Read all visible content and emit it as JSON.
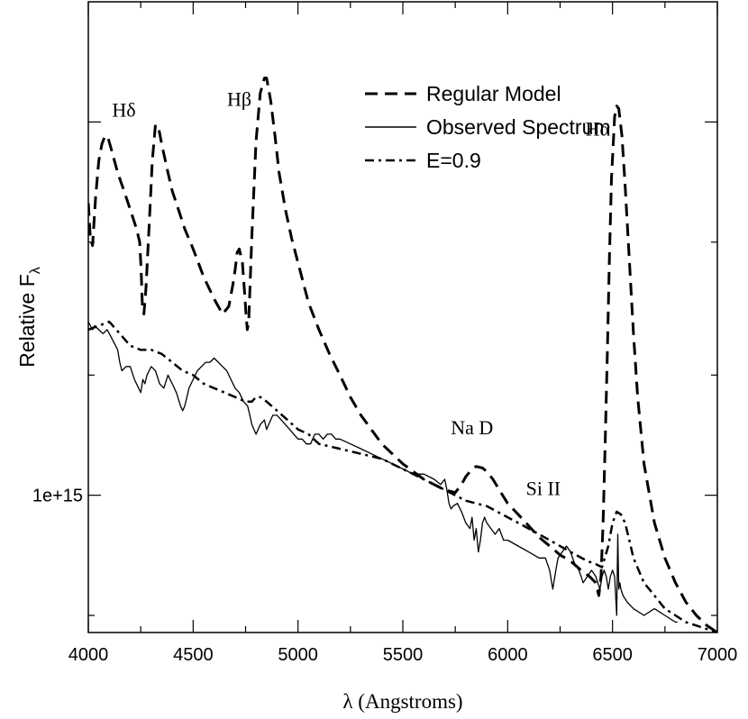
{
  "chart_data": {
    "type": "line",
    "title": "",
    "xlabel": "λ (Angstroms)",
    "ylabel": "Relative F",
    "ylabel_subscript": "λ",
    "xlim": [
      4000,
      7000
    ],
    "ylim": [
      0.775,
      2.5
    ],
    "yscale": "log",
    "x_ticks": [
      4000,
      4500,
      5000,
      5500,
      6000,
      6500,
      7000
    ],
    "x_tick_labels": [
      "4000",
      "4500",
      "5000",
      "5500",
      "6000",
      "6500",
      "7000"
    ],
    "y_tick_labels": [
      {
        "value": 1.0,
        "label": "1e+15"
      }
    ],
    "y_tick_unit_note": "y values are in units of 1e15",
    "legend": [
      "Regular Model",
      "Observed Spectrum",
      "E=0.9"
    ],
    "annotations": [
      {
        "text": "Hδ",
        "x": 4170,
        "y": 2.02
      },
      {
        "text": "Hβ",
        "x": 4720,
        "y": 2.06
      },
      {
        "text": "Hα",
        "x": 6430,
        "y": 1.95
      },
      {
        "text": "Na D",
        "x": 5830,
        "y": 1.12
      },
      {
        "text": "Si II",
        "x": 6170,
        "y": 1.0
      }
    ],
    "series": [
      {
        "name": "Regular Model",
        "style": "dashed",
        "x": [
          4000,
          4010,
          4020,
          4035,
          4050,
          4065,
          4080,
          4095,
          4110,
          4140,
          4170,
          4200,
          4230,
          4245,
          4252,
          4258,
          4265,
          4275,
          4290,
          4305,
          4320,
          4335,
          4350,
          4380,
          4400,
          4430,
          4460,
          4500,
          4550,
          4600,
          4640,
          4670,
          4690,
          4700,
          4710,
          4720,
          4735,
          4745,
          4752,
          4758,
          4765,
          4780,
          4800,
          4820,
          4840,
          4850,
          4870,
          4890,
          4910,
          4940,
          4970,
          5000,
          5050,
          5100,
          5150,
          5200,
          5250,
          5300,
          5400,
          5500,
          5600,
          5700,
          5750,
          5780,
          5800,
          5830,
          5850,
          5880,
          5900,
          5930,
          5960,
          6000,
          6050,
          6100,
          6150,
          6200,
          6250,
          6300,
          6350,
          6390,
          6420,
          6435,
          6445,
          6455,
          6465,
          6475,
          6485,
          6495,
          6510,
          6520,
          6530,
          6545,
          6560,
          6580,
          6600,
          6620,
          6650,
          6700,
          6750,
          6800,
          6850,
          6900,
          6950,
          7000
        ],
        "y": [
          1.72,
          1.61,
          1.59,
          1.74,
          1.86,
          1.92,
          1.95,
          1.94,
          1.9,
          1.82,
          1.76,
          1.7,
          1.64,
          1.6,
          1.52,
          1.42,
          1.4,
          1.47,
          1.65,
          1.86,
          1.99,
          1.98,
          1.92,
          1.82,
          1.76,
          1.7,
          1.64,
          1.58,
          1.5,
          1.44,
          1.4,
          1.42,
          1.48,
          1.52,
          1.57,
          1.58,
          1.54,
          1.46,
          1.4,
          1.36,
          1.38,
          1.62,
          1.93,
          2.11,
          2.17,
          2.17,
          2.08,
          1.95,
          1.82,
          1.7,
          1.61,
          1.54,
          1.43,
          1.36,
          1.3,
          1.25,
          1.2,
          1.16,
          1.1,
          1.06,
          1.03,
          1.01,
          1.005,
          1.02,
          1.035,
          1.05,
          1.055,
          1.052,
          1.045,
          1.03,
          1.01,
          0.985,
          0.965,
          0.945,
          0.925,
          0.91,
          0.895,
          0.885,
          0.87,
          0.86,
          0.85,
          0.83,
          0.86,
          0.95,
          1.1,
          1.3,
          1.55,
          1.8,
          2.02,
          2.06,
          2.05,
          1.95,
          1.78,
          1.55,
          1.35,
          1.2,
          1.06,
          0.95,
          0.89,
          0.85,
          0.82,
          0.8,
          0.785,
          0.775
        ]
      },
      {
        "name": "Observed Spectrum",
        "style": "solid",
        "x": [
          4000,
          4010,
          4020,
          4030,
          4050,
          4070,
          4090,
          4100,
          4120,
          4140,
          4150,
          4160,
          4180,
          4200,
          4220,
          4240,
          4250,
          4260,
          4270,
          4280,
          4290,
          4300,
          4320,
          4340,
          4360,
          4380,
          4400,
          4420,
          4440,
          4450,
          4460,
          4470,
          4480,
          4500,
          4520,
          4540,
          4560,
          4580,
          4600,
          4620,
          4640,
          4660,
          4680,
          4700,
          4720,
          4740,
          4760,
          4770,
          4780,
          4790,
          4800,
          4820,
          4840,
          4850,
          4860,
          4870,
          4880,
          4900,
          4920,
          4940,
          4960,
          4980,
          5000,
          5020,
          5040,
          5060,
          5080,
          5100,
          5120,
          5140,
          5160,
          5180,
          5200,
          5250,
          5300,
          5350,
          5400,
          5450,
          5500,
          5550,
          5600,
          5650,
          5680,
          5700,
          5710,
          5720,
          5730,
          5740,
          5760,
          5780,
          5800,
          5820,
          5830,
          5840,
          5850,
          5860,
          5870,
          5880,
          5890,
          5900,
          5920,
          5940,
          5960,
          5980,
          6000,
          6050,
          6100,
          6150,
          6180,
          6200,
          6210,
          6215,
          6220,
          6230,
          6240,
          6260,
          6280,
          6300,
          6320,
          6340,
          6350,
          6360,
          6380,
          6400,
          6420,
          6440,
          6450,
          6460,
          6470,
          6480,
          6490,
          6500,
          6510,
          6520,
          6525,
          6530,
          6535,
          6540,
          6550,
          6570,
          6600,
          6650,
          6700,
          6750,
          6800,
          6810
        ],
        "y": [
          1.38,
          1.37,
          1.36,
          1.37,
          1.36,
          1.35,
          1.36,
          1.35,
          1.33,
          1.31,
          1.28,
          1.26,
          1.27,
          1.27,
          1.24,
          1.22,
          1.21,
          1.24,
          1.23,
          1.25,
          1.26,
          1.27,
          1.26,
          1.23,
          1.22,
          1.25,
          1.23,
          1.21,
          1.18,
          1.17,
          1.18,
          1.2,
          1.22,
          1.24,
          1.26,
          1.27,
          1.28,
          1.28,
          1.29,
          1.28,
          1.27,
          1.26,
          1.24,
          1.22,
          1.21,
          1.19,
          1.18,
          1.16,
          1.14,
          1.13,
          1.12,
          1.14,
          1.15,
          1.13,
          1.14,
          1.15,
          1.16,
          1.16,
          1.15,
          1.14,
          1.13,
          1.12,
          1.11,
          1.11,
          1.1,
          1.1,
          1.12,
          1.12,
          1.11,
          1.12,
          1.12,
          1.11,
          1.11,
          1.1,
          1.09,
          1.08,
          1.07,
          1.06,
          1.05,
          1.04,
          1.04,
          1.03,
          1.02,
          1.03,
          1.01,
          0.985,
          0.975,
          0.98,
          0.985,
          0.97,
          0.95,
          0.94,
          0.96,
          0.92,
          0.94,
          0.9,
          0.92,
          0.95,
          0.96,
          0.95,
          0.94,
          0.93,
          0.94,
          0.92,
          0.92,
          0.91,
          0.9,
          0.89,
          0.89,
          0.87,
          0.85,
          0.84,
          0.85,
          0.87,
          0.89,
          0.9,
          0.91,
          0.9,
          0.88,
          0.87,
          0.86,
          0.85,
          0.86,
          0.87,
          0.86,
          0.84,
          0.86,
          0.87,
          0.86,
          0.84,
          0.86,
          0.87,
          0.86,
          0.8,
          0.93,
          0.84,
          0.85,
          0.84,
          0.83,
          0.82,
          0.81,
          0.8,
          0.81,
          0.8,
          0.79,
          0.79
        ]
      },
      {
        "name": "E=0.9",
        "style": "dashdot",
        "x": [
          4000,
          4050,
          4100,
          4150,
          4200,
          4250,
          4300,
          4350,
          4400,
          4450,
          4500,
          4550,
          4600,
          4650,
          4700,
          4750,
          4780,
          4800,
          4820,
          4850,
          4900,
          4950,
          5000,
          5050,
          5100,
          5200,
          5300,
          5400,
          5500,
          5600,
          5700,
          5800,
          5850,
          5900,
          6000,
          6100,
          6200,
          6300,
          6380,
          6420,
          6450,
          6480,
          6500,
          6520,
          6540,
          6560,
          6580,
          6600,
          6650,
          6700,
          6750,
          6800,
          6850,
          6900,
          6950,
          7000
        ],
        "y": [
          1.36,
          1.37,
          1.38,
          1.35,
          1.32,
          1.31,
          1.31,
          1.3,
          1.28,
          1.26,
          1.25,
          1.23,
          1.22,
          1.21,
          1.2,
          1.19,
          1.19,
          1.2,
          1.2,
          1.19,
          1.17,
          1.15,
          1.13,
          1.12,
          1.1,
          1.09,
          1.08,
          1.07,
          1.05,
          1.03,
          1.01,
          0.99,
          0.985,
          0.98,
          0.96,
          0.94,
          0.92,
          0.9,
          0.885,
          0.88,
          0.875,
          0.91,
          0.95,
          0.97,
          0.965,
          0.95,
          0.92,
          0.89,
          0.85,
          0.83,
          0.81,
          0.8,
          0.79,
          0.785,
          0.78,
          0.775
        ]
      }
    ]
  }
}
